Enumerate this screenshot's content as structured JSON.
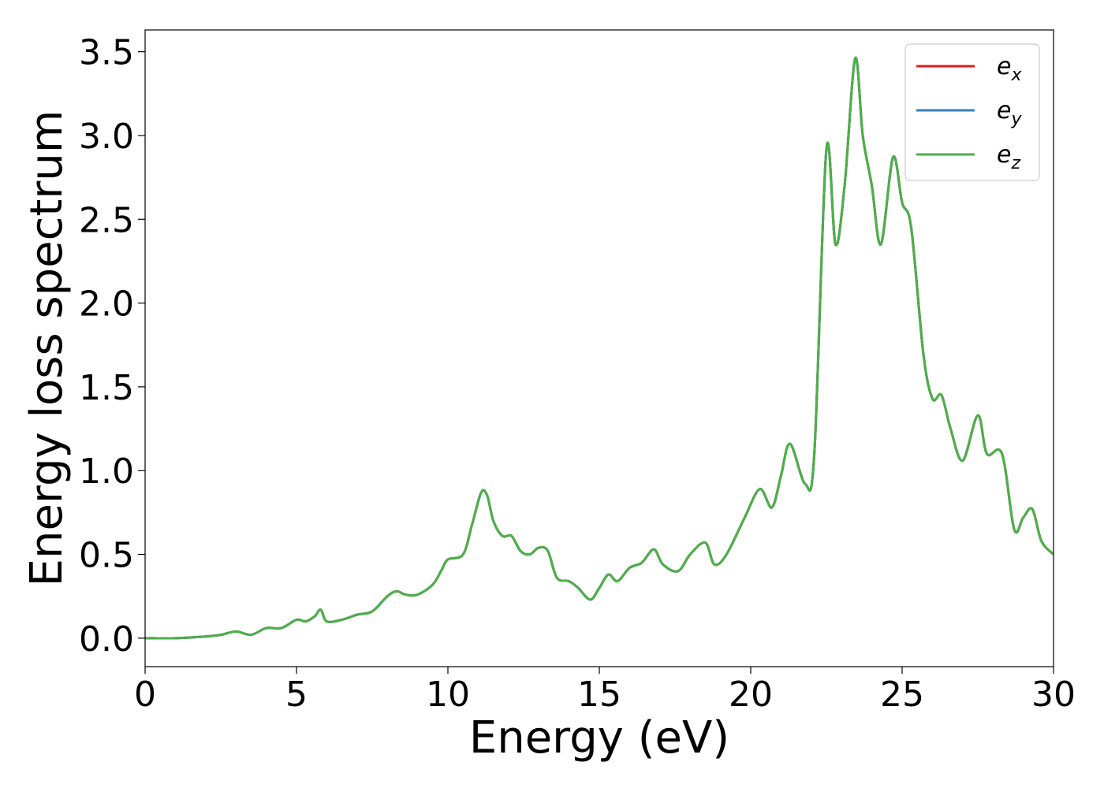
{
  "chart_data": {
    "type": "line",
    "title": "",
    "xlabel": "Energy (eV)",
    "ylabel": "Energy loss spectrum",
    "xlim": [
      0,
      30
    ],
    "ylim": [
      -0.17,
      3.63
    ],
    "xticks": [
      0,
      5,
      10,
      15,
      20,
      25,
      30
    ],
    "xtick_labels": [
      "0",
      "5",
      "10",
      "15",
      "20",
      "25",
      "30"
    ],
    "yticks": [
      0.0,
      0.5,
      1.0,
      1.5,
      2.0,
      2.5,
      3.0,
      3.5
    ],
    "ytick_labels": [
      "0.0",
      "0.5",
      "1.0",
      "1.5",
      "2.0",
      "2.5",
      "3.0",
      "3.5"
    ],
    "grid": false,
    "legend_position": "top-right",
    "series": [
      {
        "name": "e_x",
        "legend_base": "e",
        "legend_sub": "x",
        "color": "#e41a1c",
        "x": [
          0,
          1,
          2,
          2.5,
          3,
          3.5,
          4,
          4.5,
          5,
          5.3,
          5.6,
          5.8,
          6,
          6.5,
          7,
          7.5,
          8,
          8.3,
          8.6,
          9,
          9.5,
          9.8,
          10,
          10.5,
          10.8,
          11.1,
          11.3,
          11.5,
          11.8,
          12.1,
          12.4,
          12.7,
          13,
          13.3,
          13.6,
          14,
          14.3,
          14.7,
          15,
          15.3,
          15.6,
          16,
          16.4,
          16.8,
          17.1,
          17.6,
          18,
          18.5,
          18.8,
          19.2,
          19.8,
          20.3,
          20.7,
          21,
          21.3,
          21.8,
          22.1,
          22.5,
          22.8,
          23.1,
          23.45,
          23.7,
          24,
          24.3,
          24.7,
          25,
          25.3,
          25.7,
          26,
          26.3,
          26.6,
          27,
          27.5,
          27.8,
          28.3,
          28.7,
          29,
          29.3,
          29.6,
          30
        ],
        "values": [
          0,
          0,
          0.01,
          0.02,
          0.04,
          0.02,
          0.06,
          0.06,
          0.11,
          0.1,
          0.13,
          0.17,
          0.1,
          0.11,
          0.14,
          0.16,
          0.25,
          0.28,
          0.26,
          0.26,
          0.32,
          0.41,
          0.47,
          0.5,
          0.68,
          0.87,
          0.85,
          0.7,
          0.61,
          0.61,
          0.52,
          0.5,
          0.54,
          0.52,
          0.36,
          0.34,
          0.3,
          0.23,
          0.3,
          0.38,
          0.34,
          0.42,
          0.45,
          0.53,
          0.44,
          0.4,
          0.5,
          0.57,
          0.44,
          0.5,
          0.72,
          0.89,
          0.78,
          0.97,
          1.16,
          0.92,
          1.1,
          2.92,
          2.35,
          2.7,
          3.46,
          3.0,
          2.7,
          2.35,
          2.87,
          2.6,
          2.45,
          1.7,
          1.43,
          1.45,
          1.25,
          1.06,
          1.33,
          1.1,
          1.1,
          0.65,
          0.72,
          0.77,
          0.58,
          0.5
        ]
      },
      {
        "name": "e_y",
        "legend_base": "e",
        "legend_sub": "y",
        "color": "#377eb8",
        "x": [
          0,
          1,
          2,
          2.5,
          3,
          3.5,
          4,
          4.5,
          5,
          5.3,
          5.6,
          5.8,
          6,
          6.5,
          7,
          7.5,
          8,
          8.3,
          8.6,
          9,
          9.5,
          9.8,
          10,
          10.5,
          10.8,
          11.1,
          11.3,
          11.5,
          11.8,
          12.1,
          12.4,
          12.7,
          13,
          13.3,
          13.6,
          14,
          14.3,
          14.7,
          15,
          15.3,
          15.6,
          16,
          16.4,
          16.8,
          17.1,
          17.6,
          18,
          18.5,
          18.8,
          19.2,
          19.8,
          20.3,
          20.7,
          21,
          21.3,
          21.8,
          22.1,
          22.5,
          22.8,
          23.1,
          23.45,
          23.7,
          24,
          24.3,
          24.7,
          25,
          25.3,
          25.7,
          26,
          26.3,
          26.6,
          27,
          27.5,
          27.8,
          28.3,
          28.7,
          29,
          29.3,
          29.6,
          30
        ],
        "values": [
          0,
          0,
          0.01,
          0.02,
          0.04,
          0.02,
          0.06,
          0.06,
          0.11,
          0.1,
          0.13,
          0.17,
          0.1,
          0.11,
          0.14,
          0.16,
          0.25,
          0.28,
          0.26,
          0.26,
          0.32,
          0.41,
          0.47,
          0.5,
          0.68,
          0.87,
          0.85,
          0.7,
          0.61,
          0.61,
          0.52,
          0.5,
          0.54,
          0.52,
          0.36,
          0.34,
          0.3,
          0.23,
          0.3,
          0.38,
          0.34,
          0.42,
          0.45,
          0.53,
          0.44,
          0.4,
          0.5,
          0.57,
          0.44,
          0.5,
          0.72,
          0.89,
          0.78,
          0.97,
          1.16,
          0.92,
          1.1,
          2.92,
          2.35,
          2.7,
          3.46,
          3.0,
          2.7,
          2.35,
          2.87,
          2.6,
          2.45,
          1.7,
          1.43,
          1.45,
          1.25,
          1.06,
          1.33,
          1.1,
          1.1,
          0.65,
          0.72,
          0.77,
          0.58,
          0.5
        ]
      },
      {
        "name": "e_z",
        "legend_base": "e",
        "legend_sub": "z",
        "color": "#4daf4a",
        "x": [
          0,
          1,
          2,
          2.5,
          3,
          3.5,
          4,
          4.5,
          5,
          5.3,
          5.6,
          5.8,
          6,
          6.5,
          7,
          7.5,
          8,
          8.3,
          8.6,
          9,
          9.5,
          9.8,
          10,
          10.5,
          10.8,
          11.1,
          11.3,
          11.5,
          11.8,
          12.1,
          12.4,
          12.7,
          13,
          13.3,
          13.6,
          14,
          14.3,
          14.7,
          15,
          15.3,
          15.6,
          16,
          16.4,
          16.8,
          17.1,
          17.6,
          18,
          18.5,
          18.8,
          19.2,
          19.8,
          20.3,
          20.7,
          21,
          21.3,
          21.8,
          22.1,
          22.5,
          22.8,
          23.1,
          23.45,
          23.7,
          24,
          24.3,
          24.7,
          25,
          25.3,
          25.7,
          26,
          26.3,
          26.6,
          27,
          27.5,
          27.8,
          28.3,
          28.7,
          29,
          29.3,
          29.6,
          30
        ],
        "values": [
          0,
          0,
          0.01,
          0.02,
          0.04,
          0.02,
          0.06,
          0.06,
          0.11,
          0.1,
          0.13,
          0.17,
          0.1,
          0.11,
          0.14,
          0.16,
          0.25,
          0.28,
          0.26,
          0.26,
          0.32,
          0.41,
          0.47,
          0.5,
          0.68,
          0.87,
          0.85,
          0.7,
          0.61,
          0.61,
          0.52,
          0.5,
          0.54,
          0.52,
          0.36,
          0.34,
          0.3,
          0.23,
          0.3,
          0.38,
          0.34,
          0.42,
          0.45,
          0.53,
          0.44,
          0.4,
          0.5,
          0.57,
          0.44,
          0.5,
          0.72,
          0.89,
          0.78,
          0.97,
          1.16,
          0.92,
          1.1,
          2.92,
          2.35,
          2.7,
          3.46,
          3.0,
          2.7,
          2.35,
          2.87,
          2.6,
          2.45,
          1.7,
          1.43,
          1.45,
          1.25,
          1.06,
          1.33,
          1.1,
          1.1,
          0.65,
          0.72,
          0.77,
          0.58,
          0.5
        ]
      }
    ]
  }
}
